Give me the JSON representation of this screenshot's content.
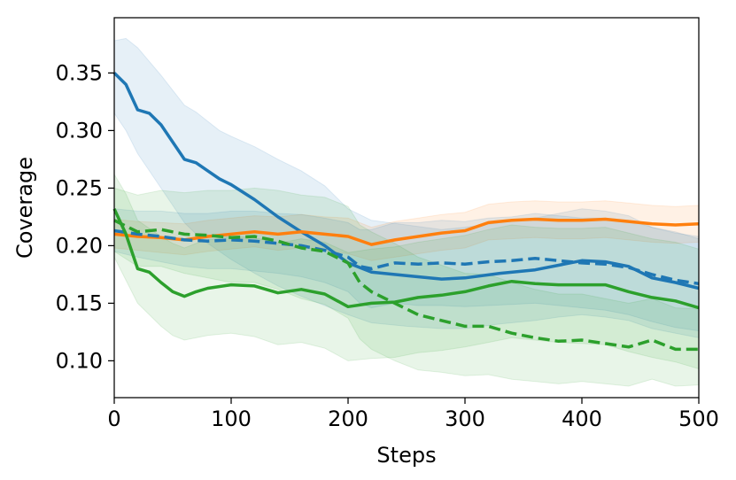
{
  "chart_data": {
    "type": "line",
    "title": "",
    "xlabel": "Steps",
    "ylabel": "Coverage",
    "xlim": [
      0,
      500
    ],
    "ylim": [
      0.068,
      0.398
    ],
    "xticks": [
      0,
      100,
      200,
      300,
      400,
      500
    ],
    "yticks": [
      0.1,
      0.15,
      0.2,
      0.25,
      0.3,
      0.35
    ],
    "ytick_labels": [
      "0.10",
      "0.15",
      "0.20",
      "0.25",
      "0.30",
      "0.35"
    ],
    "grid": false,
    "legend": "none",
    "series": [
      {
        "name": "blue-solid",
        "color": "#1f77b4",
        "style": "solid",
        "x": [
          0,
          10,
          20,
          30,
          40,
          50,
          60,
          70,
          80,
          90,
          100,
          120,
          140,
          160,
          180,
          200,
          220,
          250,
          280,
          300,
          330,
          360,
          380,
          400,
          420,
          440,
          460,
          480,
          500
        ],
        "y": [
          0.35,
          0.34,
          0.318,
          0.315,
          0.305,
          0.29,
          0.275,
          0.272,
          0.265,
          0.258,
          0.253,
          0.24,
          0.225,
          0.212,
          0.2,
          0.185,
          0.177,
          0.174,
          0.171,
          0.172,
          0.176,
          0.179,
          0.183,
          0.187,
          0.186,
          0.182,
          0.172,
          0.168,
          0.163
        ],
        "band_lower": [
          0.315,
          0.3,
          0.28,
          0.265,
          0.25,
          0.235,
          0.22,
          0.21,
          0.202,
          0.195,
          0.188,
          0.176,
          0.165,
          0.156,
          0.148,
          0.14,
          0.133,
          0.13,
          0.128,
          0.128,
          0.132,
          0.135,
          0.138,
          0.14,
          0.138,
          0.135,
          0.128,
          0.124,
          0.12
        ],
        "band_upper": [
          0.378,
          0.38,
          0.372,
          0.36,
          0.348,
          0.335,
          0.322,
          0.316,
          0.308,
          0.3,
          0.295,
          0.286,
          0.275,
          0.265,
          0.252,
          0.232,
          0.222,
          0.218,
          0.214,
          0.216,
          0.22,
          0.224,
          0.228,
          0.232,
          0.23,
          0.226,
          0.216,
          0.212,
          0.206
        ]
      },
      {
        "name": "orange-solid",
        "color": "#ff7f0e",
        "style": "solid",
        "x": [
          0,
          20,
          40,
          60,
          80,
          100,
          120,
          140,
          160,
          180,
          200,
          220,
          240,
          260,
          280,
          300,
          320,
          340,
          360,
          380,
          400,
          420,
          440,
          460,
          480,
          500
        ],
        "y": [
          0.21,
          0.208,
          0.207,
          0.205,
          0.208,
          0.21,
          0.212,
          0.21,
          0.212,
          0.21,
          0.208,
          0.201,
          0.205,
          0.208,
          0.211,
          0.213,
          0.22,
          0.222,
          0.223,
          0.222,
          0.222,
          0.223,
          0.221,
          0.219,
          0.218,
          0.219
        ],
        "band_lower": [
          0.198,
          0.196,
          0.194,
          0.192,
          0.195,
          0.197,
          0.199,
          0.196,
          0.198,
          0.196,
          0.193,
          0.187,
          0.19,
          0.193,
          0.196,
          0.198,
          0.205,
          0.206,
          0.207,
          0.206,
          0.206,
          0.207,
          0.205,
          0.203,
          0.202,
          0.203
        ],
        "band_upper": [
          0.223,
          0.221,
          0.22,
          0.219,
          0.222,
          0.224,
          0.226,
          0.225,
          0.227,
          0.225,
          0.224,
          0.216,
          0.221,
          0.224,
          0.227,
          0.229,
          0.236,
          0.238,
          0.239,
          0.238,
          0.238,
          0.239,
          0.237,
          0.235,
          0.234,
          0.235
        ]
      },
      {
        "name": "blue-dashed",
        "color": "#1f77b4",
        "style": "dashed",
        "x": [
          0,
          20,
          40,
          60,
          80,
          100,
          120,
          140,
          160,
          180,
          200,
          210,
          220,
          240,
          260,
          280,
          300,
          320,
          340,
          360,
          380,
          400,
          420,
          440,
          460,
          480,
          500
        ],
        "y": [
          0.213,
          0.21,
          0.208,
          0.205,
          0.204,
          0.205,
          0.204,
          0.202,
          0.2,
          0.196,
          0.19,
          0.182,
          0.18,
          0.185,
          0.184,
          0.185,
          0.184,
          0.186,
          0.187,
          0.189,
          0.187,
          0.185,
          0.184,
          0.181,
          0.175,
          0.17,
          0.167
        ],
        "band_lower": [
          0.195,
          0.19,
          0.186,
          0.182,
          0.18,
          0.18,
          0.178,
          0.176,
          0.173,
          0.168,
          0.16,
          0.15,
          0.146,
          0.15,
          0.148,
          0.148,
          0.147,
          0.148,
          0.149,
          0.15,
          0.148,
          0.146,
          0.144,
          0.14,
          0.134,
          0.129,
          0.126
        ],
        "band_upper": [
          0.232,
          0.23,
          0.23,
          0.228,
          0.228,
          0.23,
          0.23,
          0.228,
          0.227,
          0.224,
          0.22,
          0.214,
          0.214,
          0.22,
          0.22,
          0.222,
          0.221,
          0.224,
          0.225,
          0.228,
          0.226,
          0.224,
          0.224,
          0.222,
          0.216,
          0.211,
          0.208
        ]
      },
      {
        "name": "green-solid",
        "color": "#2ca02c",
        "style": "solid",
        "x": [
          0,
          10,
          20,
          30,
          40,
          50,
          60,
          70,
          80,
          100,
          120,
          140,
          160,
          180,
          200,
          220,
          240,
          260,
          280,
          300,
          320,
          340,
          360,
          380,
          400,
          420,
          440,
          460,
          480,
          500
        ],
        "y": [
          0.232,
          0.21,
          0.18,
          0.177,
          0.168,
          0.16,
          0.156,
          0.16,
          0.163,
          0.166,
          0.165,
          0.159,
          0.162,
          0.158,
          0.147,
          0.15,
          0.151,
          0.155,
          0.157,
          0.16,
          0.165,
          0.169,
          0.167,
          0.166,
          0.166,
          0.166,
          0.16,
          0.155,
          0.152,
          0.146
        ],
        "band_lower": [
          0.19,
          0.17,
          0.15,
          0.14,
          0.13,
          0.122,
          0.118,
          0.12,
          0.122,
          0.124,
          0.121,
          0.114,
          0.116,
          0.111,
          0.1,
          0.102,
          0.103,
          0.107,
          0.109,
          0.112,
          0.116,
          0.12,
          0.118,
          0.116,
          0.115,
          0.114,
          0.108,
          0.103,
          0.099,
          0.093
        ],
        "band_upper": [
          0.262,
          0.245,
          0.222,
          0.215,
          0.208,
          0.202,
          0.198,
          0.202,
          0.205,
          0.208,
          0.207,
          0.202,
          0.206,
          0.203,
          0.194,
          0.197,
          0.199,
          0.203,
          0.206,
          0.209,
          0.214,
          0.218,
          0.216,
          0.215,
          0.215,
          0.216,
          0.211,
          0.206,
          0.203,
          0.197
        ]
      },
      {
        "name": "green-dashed",
        "color": "#2ca02c",
        "style": "dashed",
        "x": [
          0,
          20,
          40,
          60,
          80,
          100,
          120,
          140,
          160,
          180,
          200,
          210,
          220,
          240,
          260,
          280,
          300,
          320,
          340,
          360,
          380,
          400,
          420,
          440,
          460,
          480,
          500
        ],
        "y": [
          0.222,
          0.212,
          0.214,
          0.21,
          0.209,
          0.207,
          0.208,
          0.204,
          0.198,
          0.195,
          0.185,
          0.168,
          0.16,
          0.15,
          0.14,
          0.135,
          0.13,
          0.13,
          0.124,
          0.12,
          0.117,
          0.118,
          0.115,
          0.112,
          0.118,
          0.11,
          0.11
        ],
        "band_lower": [
          0.195,
          0.182,
          0.182,
          0.176,
          0.172,
          0.168,
          0.168,
          0.162,
          0.154,
          0.149,
          0.137,
          0.119,
          0.11,
          0.1,
          0.092,
          0.09,
          0.087,
          0.088,
          0.084,
          0.082,
          0.08,
          0.082,
          0.08,
          0.078,
          0.084,
          0.078,
          0.079
        ],
        "band_upper": [
          0.25,
          0.244,
          0.248,
          0.246,
          0.248,
          0.248,
          0.25,
          0.248,
          0.244,
          0.242,
          0.234,
          0.218,
          0.212,
          0.202,
          0.19,
          0.183,
          0.176,
          0.175,
          0.168,
          0.162,
          0.158,
          0.158,
          0.154,
          0.15,
          0.154,
          0.146,
          0.145
        ]
      }
    ]
  }
}
